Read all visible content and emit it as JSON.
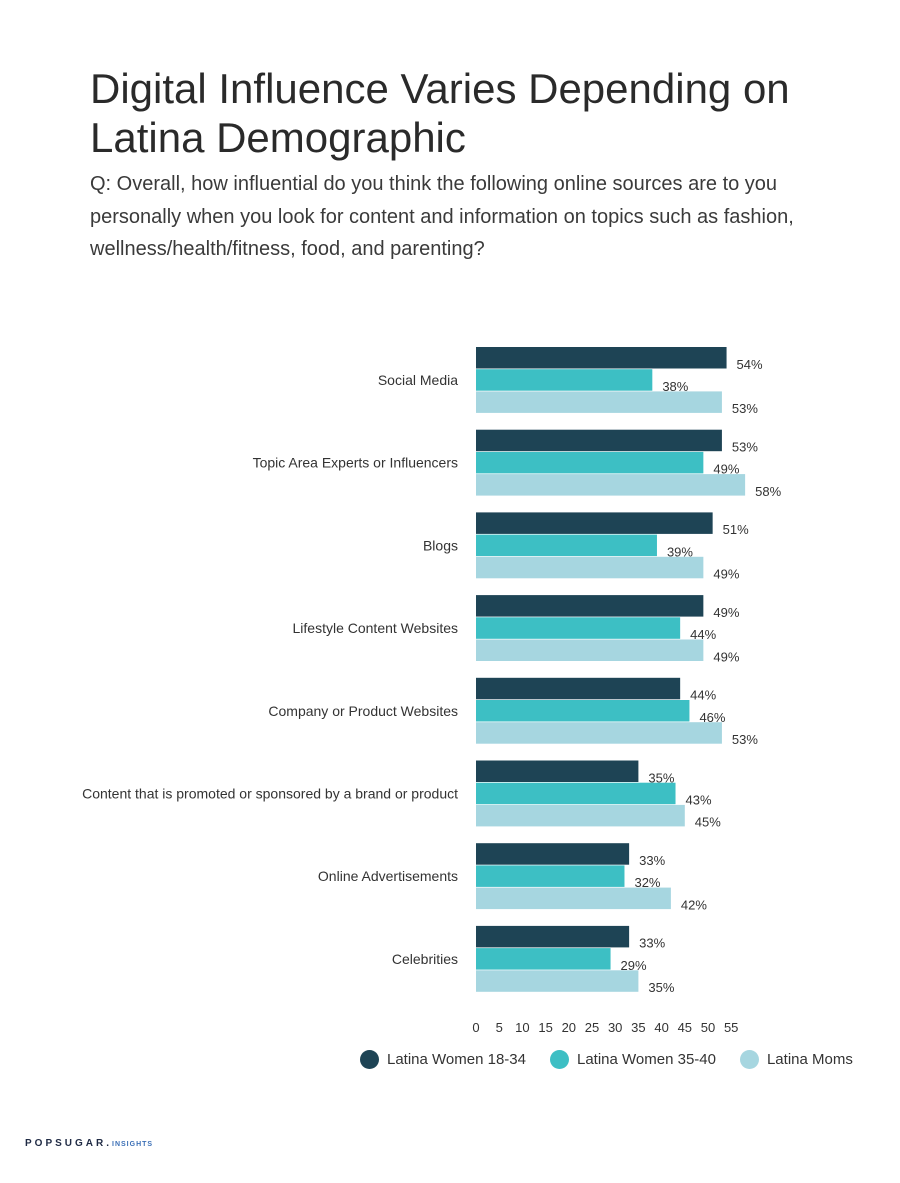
{
  "title": "Digital Influence Varies Depending on Latina Demographic",
  "question": "Q: Overall, how influential do you think the following online sources are to you personally when you look for content and information on topics such as fashion, wellness/health/fitness, food, and parenting?",
  "brand": {
    "name": "POPSUGAR",
    "suffix": "INSIGHTS"
  },
  "chart_data": {
    "type": "bar",
    "orientation": "horizontal",
    "categories": [
      "Social Media",
      "Topic Area Experts or Influencers",
      "Blogs",
      "Lifestyle Content Websites",
      "Company or Product Websites",
      "Content that is promoted or sponsored by a brand or product",
      "Online Advertisements",
      "Celebrities"
    ],
    "series": [
      {
        "name": "Latina Women 18-34",
        "color": "#1e4455",
        "values": [
          54,
          53,
          51,
          49,
          44,
          35,
          33,
          33
        ]
      },
      {
        "name": "Latina Women 35-40",
        "color": "#3dbfc4",
        "values": [
          38,
          49,
          39,
          44,
          46,
          43,
          32,
          29
        ]
      },
      {
        "name": "Latina Moms",
        "color": "#a6d6e0",
        "values": [
          53,
          58,
          49,
          49,
          53,
          45,
          42,
          35
        ]
      }
    ],
    "value_suffix": "%",
    "xticks": [
      0,
      5,
      10,
      15,
      20,
      25,
      30,
      35,
      40,
      45,
      50,
      55
    ],
    "xlim": [
      0,
      58
    ],
    "legend_position": "bottom",
    "grid": false
  }
}
